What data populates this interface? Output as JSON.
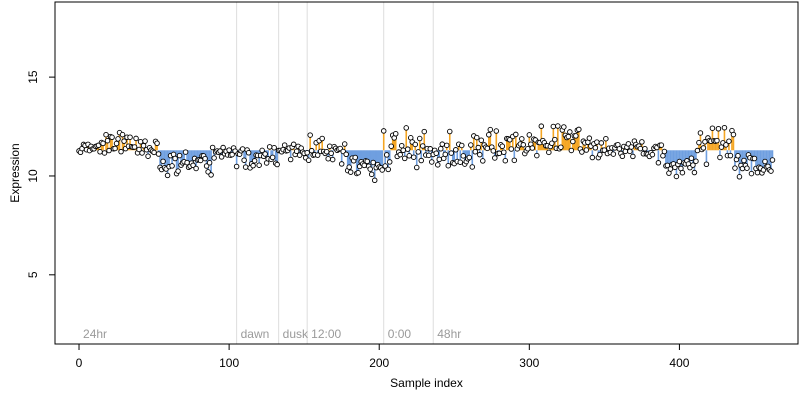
{
  "chart_data": {
    "type": "scatter",
    "title": "",
    "xlabel": "Sample index",
    "ylabel": "Expression",
    "xlim": [
      -16,
      479
    ],
    "ylim": [
      1.5,
      18.8
    ],
    "xticks": [
      0,
      100,
      200,
      300,
      400
    ],
    "yticks": [
      5,
      10,
      15
    ],
    "baseline": 11.3,
    "colors": {
      "above": "#f5a623",
      "below": "#6f9fe0",
      "divider": "#dddddd",
      "point_stroke": "#000000",
      "point_fill": "#ffffff"
    },
    "regions": [
      {
        "label": "24hr",
        "x": 0
      },
      {
        "label": "dawn",
        "x": 105
      },
      {
        "label": "dusk",
        "x": 133
      },
      {
        "label": "12:00",
        "x": 152
      },
      {
        "label": "0:00",
        "x": 203
      },
      {
        "label": "48hr",
        "x": 236
      }
    ],
    "segments": [
      {
        "x0": 0,
        "x1": 14,
        "mean": 11.4,
        "amp": 0.2
      },
      {
        "x0": 15,
        "x1": 38,
        "mean": 11.7,
        "amp": 0.5
      },
      {
        "x0": 39,
        "x1": 52,
        "mean": 11.3,
        "amp": 0.4
      },
      {
        "x0": 53,
        "x1": 88,
        "mean": 10.6,
        "amp": 0.5
      },
      {
        "x0": 89,
        "x1": 104,
        "mean": 11.2,
        "amp": 0.3
      },
      {
        "x0": 105,
        "x1": 132,
        "mean": 10.9,
        "amp": 0.5
      },
      {
        "x0": 133,
        "x1": 151,
        "mean": 11.3,
        "amp": 0.4
      },
      {
        "x0": 152,
        "x1": 178,
        "mean": 11.2,
        "amp": 0.7
      },
      {
        "x0": 179,
        "x1": 202,
        "mean": 10.4,
        "amp": 0.6
      },
      {
        "x0": 203,
        "x1": 235,
        "mean": 11.3,
        "amp": 0.9
      },
      {
        "x0": 236,
        "x1": 260,
        "mean": 11.1,
        "amp": 0.7
      },
      {
        "x0": 261,
        "x1": 300,
        "mean": 11.5,
        "amp": 0.9
      },
      {
        "x0": 301,
        "x1": 340,
        "mean": 11.8,
        "amp": 0.7
      },
      {
        "x0": 341,
        "x1": 390,
        "mean": 11.3,
        "amp": 0.5
      },
      {
        "x0": 391,
        "x1": 410,
        "mean": 10.5,
        "amp": 0.5
      },
      {
        "x0": 411,
        "x1": 436,
        "mean": 11.6,
        "amp": 0.8
      },
      {
        "x0": 437,
        "x1": 462,
        "mean": 10.5,
        "amp": 0.5
      }
    ]
  }
}
